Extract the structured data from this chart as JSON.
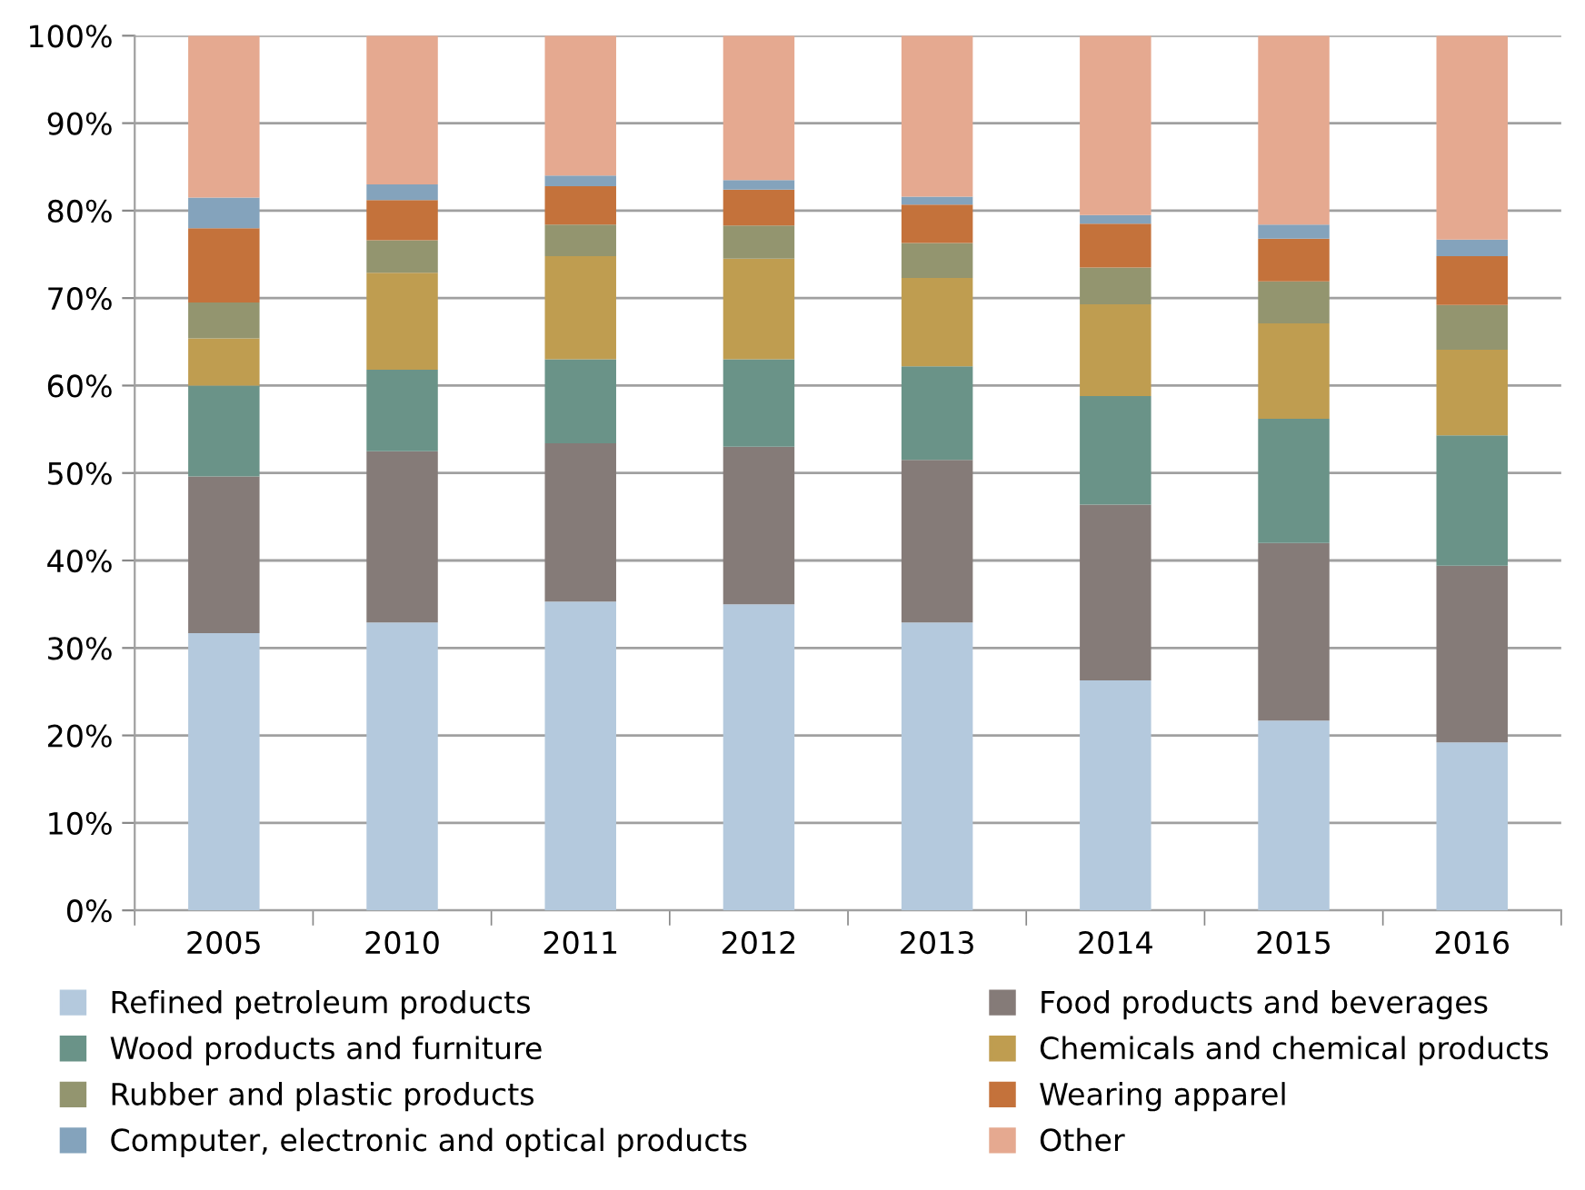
{
  "chart_data": {
    "type": "bar",
    "stacked": true,
    "categories": [
      "2005",
      "2010",
      "2011",
      "2012",
      "2013",
      "2014",
      "2015",
      "2016"
    ],
    "series": [
      {
        "name": "Refined petroleum products",
        "color": "#b4c9dd",
        "values": [
          31.7,
          32.9,
          35.3,
          35.0,
          32.9,
          26.3,
          21.7,
          19.2
        ]
      },
      {
        "name": "Food products and beverages",
        "color": "#857b78",
        "values": [
          17.9,
          19.6,
          18.1,
          18.0,
          18.6,
          20.1,
          20.3,
          20.2
        ]
      },
      {
        "name": "Wood products and furniture",
        "color": "#6a9388",
        "values": [
          10.4,
          9.3,
          9.6,
          10.0,
          10.7,
          12.4,
          14.2,
          14.9
        ]
      },
      {
        "name": "Chemicals and chemical products",
        "color": "#bf9d50",
        "values": [
          5.4,
          11.1,
          11.8,
          11.5,
          10.1,
          10.5,
          10.9,
          9.8
        ]
      },
      {
        "name": "Rubber and plastic products",
        "color": "#93956f",
        "values": [
          4.1,
          3.7,
          3.6,
          3.8,
          4.0,
          4.2,
          4.8,
          5.1
        ]
      },
      {
        "name": "Wearing apparel",
        "color": "#c4723b",
        "values": [
          8.5,
          4.6,
          4.4,
          4.1,
          4.4,
          5.0,
          4.9,
          5.6
        ]
      },
      {
        "name": "Computer, electronic and optical products",
        "color": "#84a3bc",
        "values": [
          3.5,
          1.8,
          1.2,
          1.1,
          0.9,
          1.0,
          1.6,
          1.9
        ]
      },
      {
        "name": "Other",
        "color": "#e5a990",
        "values": [
          18.5,
          17.0,
          16.0,
          16.5,
          18.4,
          20.5,
          21.6,
          23.3
        ]
      }
    ],
    "ylim": [
      0,
      100
    ],
    "yticks": [
      {
        "value": 0,
        "label": "0%"
      },
      {
        "value": 10,
        "label": "10%"
      },
      {
        "value": 20,
        "label": "20%"
      },
      {
        "value": 30,
        "label": "30%"
      },
      {
        "value": 40,
        "label": "40%"
      },
      {
        "value": 50,
        "label": "50%"
      },
      {
        "value": 60,
        "label": "60%"
      },
      {
        "value": 70,
        "label": "70%"
      },
      {
        "value": 80,
        "label": "80%"
      },
      {
        "value": 90,
        "label": "90%"
      },
      {
        "value": 100,
        "label": "100%"
      }
    ],
    "grid": "y",
    "legend": "bottom"
  }
}
